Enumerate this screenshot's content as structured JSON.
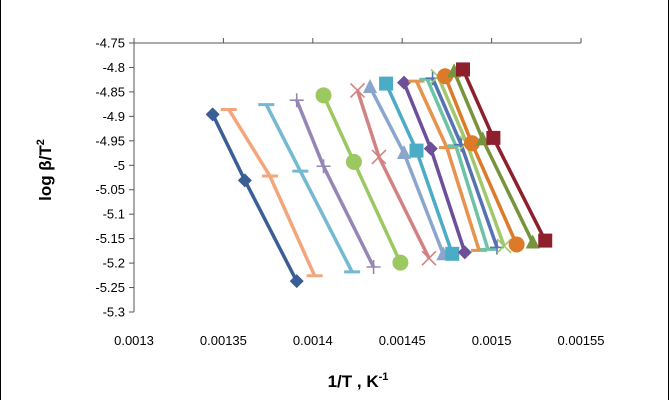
{
  "chart_data": {
    "type": "line",
    "xlabel_main": "1/T , K",
    "xlabel_sup": "-1",
    "ylabel_main": "log β/T",
    "ylabel_sup": "2",
    "xlim": [
      0.0013,
      0.00155
    ],
    "ylim": [
      -5.3,
      -4.75
    ],
    "x_ticks": [
      "0.0013",
      "0.00135",
      "0.0014",
      "0.00145",
      "0.0015",
      "0.00155"
    ],
    "y_ticks": [
      "-4.75",
      "-4.8",
      "-4.85",
      "-4.9",
      "-4.95",
      "-5",
      "-5.05",
      "-5.1",
      "-5.15",
      "-5.2",
      "-5.25",
      "-5.3"
    ],
    "grid": false,
    "series": [
      {
        "color": "#3b5e96",
        "marker": "diamond",
        "points": [
          [
            0.001344,
            -4.896
          ],
          [
            0.001362,
            -5.031
          ],
          [
            0.001391,
            -5.237
          ]
        ]
      },
      {
        "color": "#f4a57c",
        "marker": "dash",
        "points": [
          [
            0.001353,
            -4.886
          ],
          [
            0.001376,
            -5.022
          ],
          [
            0.001401,
            -5.226
          ]
        ]
      },
      {
        "color": "#74b9d1",
        "marker": "dash",
        "points": [
          [
            0.001374,
            -4.876
          ],
          [
            0.001393,
            -5.012
          ],
          [
            0.001422,
            -5.218
          ]
        ]
      },
      {
        "color": "#9686b6",
        "marker": "plus",
        "points": [
          [
            0.001391,
            -4.867
          ],
          [
            0.001406,
            -5.002
          ],
          [
            0.001434,
            -5.208
          ]
        ]
      },
      {
        "color": "#9bc860",
        "marker": "circle",
        "points": [
          [
            0.001406,
            -4.857
          ],
          [
            0.001423,
            -4.993
          ],
          [
            0.001449,
            -5.199
          ]
        ]
      },
      {
        "color": "#d28282",
        "marker": "x",
        "points": [
          [
            0.001425,
            -4.847
          ],
          [
            0.001437,
            -4.983
          ],
          [
            0.001465,
            -5.19
          ]
        ]
      },
      {
        "color": "#8aa6cc",
        "marker": "triangle",
        "points": [
          [
            0.001432,
            -4.84
          ],
          [
            0.001451,
            -4.975
          ],
          [
            0.001473,
            -5.182
          ]
        ]
      },
      {
        "color": "#4bacc6",
        "marker": "square",
        "points": [
          [
            0.001441,
            -4.833
          ],
          [
            0.001458,
            -4.97
          ],
          [
            0.001478,
            -5.181
          ]
        ]
      },
      {
        "color": "#6d4e99",
        "marker": "diamond",
        "points": [
          [
            0.001451,
            -4.831
          ],
          [
            0.001466,
            -4.966
          ],
          [
            0.001485,
            -5.178
          ]
        ]
      },
      {
        "color": "#e8934d",
        "marker": "dash",
        "points": [
          [
            0.001458,
            -4.828
          ],
          [
            0.001475,
            -4.964
          ],
          [
            0.001493,
            -5.174
          ]
        ]
      },
      {
        "color": "#6cc3a6",
        "marker": "dash",
        "points": [
          [
            0.001464,
            -4.824
          ],
          [
            0.00148,
            -4.96
          ],
          [
            0.001498,
            -5.172
          ]
        ]
      },
      {
        "color": "#5572b2",
        "marker": "plus",
        "points": [
          [
            0.001467,
            -4.822
          ],
          [
            0.001483,
            -4.958
          ],
          [
            0.001503,
            -5.168
          ]
        ]
      },
      {
        "color": "#a2c86e",
        "marker": "x",
        "points": [
          [
            0.00147,
            -4.818
          ],
          [
            0.001486,
            -4.954
          ],
          [
            0.001507,
            -5.165
          ]
        ]
      },
      {
        "color": "#dd7a2a",
        "marker": "circle",
        "points": [
          [
            0.001474,
            -4.818
          ],
          [
            0.001489,
            -4.955
          ],
          [
            0.001514,
            -5.162
          ]
        ]
      },
      {
        "color": "#77933c",
        "marker": "triangle",
        "points": [
          [
            0.001479,
            -4.808
          ],
          [
            0.001495,
            -4.947
          ],
          [
            0.001523,
            -5.158
          ]
        ]
      },
      {
        "color": "#8e1f2d",
        "marker": "square",
        "points": [
          [
            0.001484,
            -4.804
          ],
          [
            0.001501,
            -4.944
          ],
          [
            0.00153,
            -5.154
          ]
        ]
      }
    ]
  }
}
